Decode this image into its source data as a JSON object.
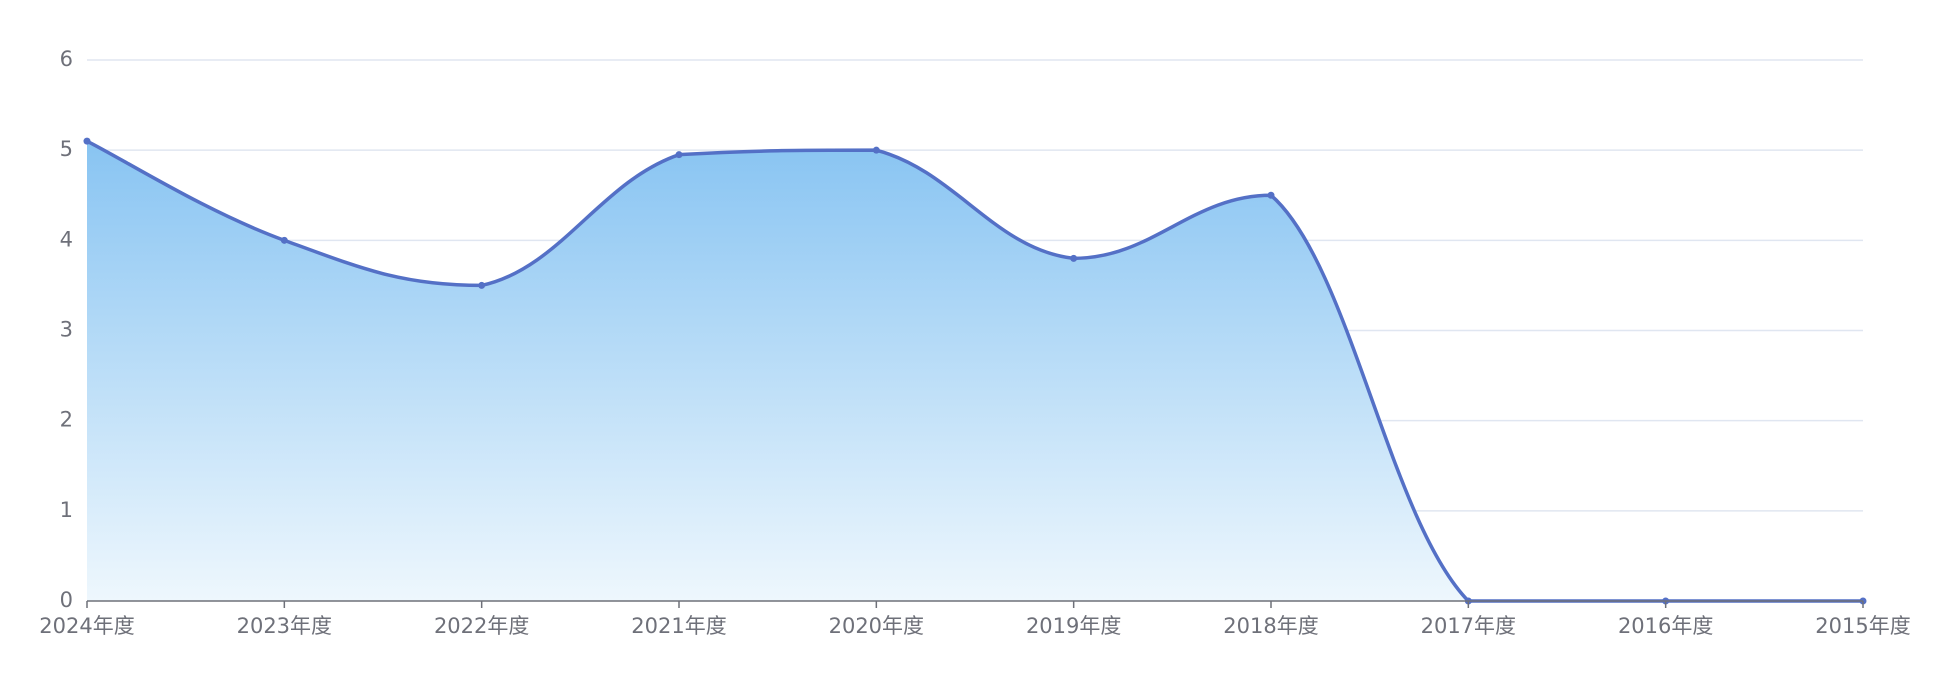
{
  "chart_data": {
    "type": "line",
    "categories": [
      "2024年度",
      "2023年度",
      "2022年度",
      "2021年度",
      "2020年度",
      "2019年度",
      "2018年度",
      "2017年度",
      "2016年度",
      "2015年度"
    ],
    "values": [
      5.1,
      4,
      3.5,
      4.95,
      5,
      3.8,
      4.5,
      0,
      0,
      0
    ],
    "color": "#5470c6",
    "ylim": [
      0,
      6
    ],
    "yticks": [
      0,
      1,
      2,
      3,
      4,
      5,
      6
    ],
    "grid": true
  }
}
